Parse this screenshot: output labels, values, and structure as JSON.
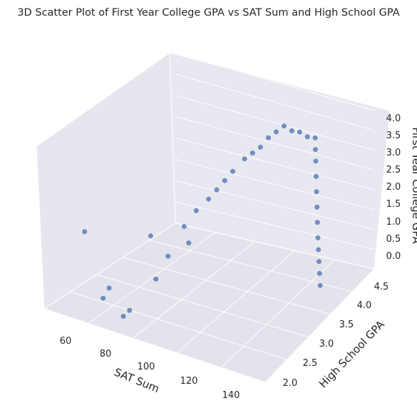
{
  "chart_data": {
    "type": "scatter",
    "title": "3D Scatter Plot of First Year College GPA vs SAT Sum and High School GPA",
    "xlabel": "SAT Sum",
    "ylabel": "High School GPA",
    "zlabel": "First Year College GPA",
    "xlim": [
      50,
      150
    ],
    "ylim": [
      1.6,
      4.7
    ],
    "zlim": [
      -0.2,
      4.2
    ],
    "xticks": [
      "60",
      "80",
      "100",
      "120",
      "140"
    ],
    "yticks": [
      "2.0",
      "2.5",
      "3.0",
      "3.5",
      "4.0",
      "4.5"
    ],
    "zticks": [
      "0.0",
      "0.5",
      "1.0",
      "1.5",
      "2.0",
      "2.5",
      "3.0",
      "3.5",
      "4.0"
    ],
    "grid": true,
    "series": [
      {
        "color": "#4c72b0",
        "points": [
          [
            55,
            2.3,
            1.5
          ],
          [
            72,
            2.0,
            0.5
          ],
          [
            73,
            1.8,
            0.4
          ],
          [
            80,
            2.6,
            1.6
          ],
          [
            84,
            1.7,
            0.2
          ],
          [
            85,
            1.8,
            0.3
          ],
          [
            88,
            2.3,
            0.8
          ],
          [
            90,
            2.5,
            1.3
          ],
          [
            92,
            2.8,
            1.9
          ],
          [
            94,
            3.0,
            2.2
          ],
          [
            96,
            2.7,
            1.6
          ],
          [
            98,
            3.1,
            2.5
          ],
          [
            100,
            3.2,
            2.7
          ],
          [
            102,
            3.3,
            2.9
          ],
          [
            104,
            3.4,
            3.1
          ],
          [
            106,
            3.6,
            3.3
          ],
          [
            108,
            3.7,
            3.4
          ],
          [
            110,
            3.8,
            3.5
          ],
          [
            112,
            3.9,
            3.7
          ],
          [
            114,
            4.0,
            3.8
          ],
          [
            116,
            4.1,
            3.9
          ],
          [
            118,
            4.2,
            3.7
          ],
          [
            120,
            4.3,
            3.6
          ],
          [
            122,
            4.4,
            3.4
          ],
          [
            124,
            4.5,
            3.3
          ],
          [
            126,
            4.4,
            3.1
          ],
          [
            128,
            4.3,
            2.9
          ],
          [
            130,
            4.2,
            2.6
          ],
          [
            132,
            4.1,
            2.3
          ],
          [
            134,
            4.0,
            2.0
          ],
          [
            136,
            3.9,
            1.7
          ],
          [
            138,
            3.8,
            1.4
          ],
          [
            140,
            3.7,
            1.2
          ],
          [
            142,
            3.6,
            1.0
          ],
          [
            144,
            3.5,
            0.8
          ],
          [
            146,
            3.4,
            0.6
          ]
        ]
      }
    ]
  }
}
